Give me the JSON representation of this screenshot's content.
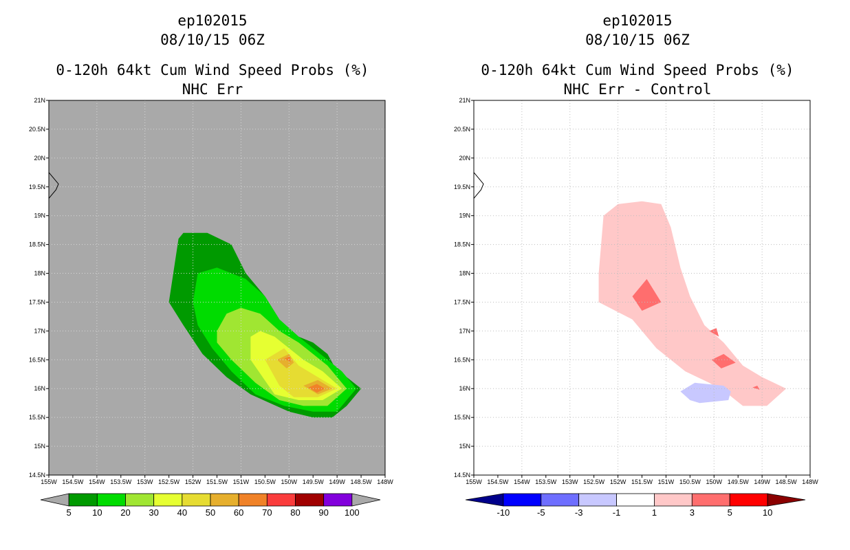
{
  "left_panel": {
    "storm": "ep102015",
    "datetime": "08/10/15 06Z",
    "product": "0-120h 64kt Cum Wind Speed Probs (%)",
    "subtitle": "NHC Err",
    "background_color": "#a9a9a9",
    "colorbar": {
      "labels": [
        "5",
        "10",
        "20",
        "30",
        "40",
        "50",
        "60",
        "70",
        "80",
        "90",
        "100"
      ],
      "colors": [
        "#a9a9a9",
        "#009a00",
        "#00dc00",
        "#a0e632",
        "#e6ff32",
        "#e6dc32",
        "#e6af2d",
        "#f08228",
        "#fa3c3c",
        "#a00000",
        "#8200dc",
        "#a9a9a9"
      ]
    }
  },
  "right_panel": {
    "storm": "ep102015",
    "datetime": "08/10/15 06Z",
    "product": "0-120h 64kt Cum Wind Speed Probs (%)",
    "subtitle": "NHC Err - Control",
    "background_color": "#ffffff",
    "colorbar": {
      "labels": [
        "-10",
        "-5",
        "-3",
        "-1",
        "1",
        "3",
        "5",
        "10"
      ],
      "colors": [
        "#00008b",
        "#0000ff",
        "#6e6eff",
        "#c8c8ff",
        "#ffffff",
        "#ffc8c8",
        "#ff6e6e",
        "#ff0000",
        "#8b0000"
      ]
    }
  },
  "axes": {
    "lon_labels": [
      "155W",
      "154.5W",
      "154W",
      "153.5W",
      "153W",
      "152.5W",
      "152W",
      "151.5W",
      "151W",
      "150.5W",
      "150W",
      "149.5W",
      "149W",
      "148.5W",
      "148W"
    ],
    "lat_labels": [
      "14.5N",
      "15N",
      "15.5N",
      "16N",
      "16.5N",
      "17N",
      "17.5N",
      "18N",
      "18.5N",
      "19N",
      "19.5N",
      "20N",
      "20.5N",
      "21N"
    ],
    "lon_range": [
      -155,
      -148
    ],
    "lat_range": [
      14.5,
      21
    ]
  },
  "contours": {
    "left": [
      {
        "level": "10-20",
        "color": "#009a00",
        "points": [
          [
            -152.5,
            17.5
          ],
          [
            -152.3,
            18.6
          ],
          [
            -152.2,
            18.7
          ],
          [
            -151.7,
            18.7
          ],
          [
            -151.2,
            18.5
          ],
          [
            -150.9,
            18
          ],
          [
            -150.5,
            17.6
          ],
          [
            -150.2,
            17.2
          ],
          [
            -149.8,
            16.9
          ],
          [
            -149.5,
            16.8
          ],
          [
            -149.2,
            16.6
          ],
          [
            -149,
            16.3
          ],
          [
            -148.8,
            16.2
          ],
          [
            -148.5,
            16
          ],
          [
            -148.8,
            15.7
          ],
          [
            -149.1,
            15.5
          ],
          [
            -149.5,
            15.5
          ],
          [
            -150,
            15.6
          ],
          [
            -150.8,
            15.9
          ],
          [
            -151.3,
            16.2
          ],
          [
            -151.8,
            16.6
          ],
          [
            -152.2,
            17.1
          ]
        ]
      },
      {
        "level": "20-30",
        "color": "#00dc00",
        "points": [
          [
            -152,
            17.5
          ],
          [
            -151.9,
            18
          ],
          [
            -151.5,
            18.1
          ],
          [
            -151.2,
            18
          ],
          [
            -150.9,
            17.9
          ],
          [
            -150.5,
            17.6
          ],
          [
            -150.2,
            17.2
          ],
          [
            -149.8,
            16.9
          ],
          [
            -149.5,
            16.7
          ],
          [
            -149.2,
            16.5
          ],
          [
            -148.9,
            16.3
          ],
          [
            -148.6,
            16
          ],
          [
            -149,
            15.6
          ],
          [
            -149.5,
            15.6
          ],
          [
            -150.1,
            15.7
          ],
          [
            -150.7,
            15.9
          ],
          [
            -151.2,
            16.3
          ],
          [
            -151.6,
            16.7
          ],
          [
            -151.9,
            17.1
          ]
        ]
      },
      {
        "level": "30-40",
        "color": "#a0e632",
        "points": [
          [
            -151.5,
            17
          ],
          [
            -151.3,
            17.3
          ],
          [
            -151,
            17.4
          ],
          [
            -150.6,
            17.3
          ],
          [
            -150.2,
            17
          ],
          [
            -149.8,
            16.8
          ],
          [
            -149.5,
            16.6
          ],
          [
            -149.2,
            16.4
          ],
          [
            -148.8,
            16
          ],
          [
            -149.2,
            15.7
          ],
          [
            -149.7,
            15.7
          ],
          [
            -150.2,
            15.8
          ],
          [
            -150.7,
            16.1
          ],
          [
            -151.2,
            16.5
          ],
          [
            -151.5,
            16.8
          ]
        ]
      },
      {
        "level": "40-50",
        "color": "#e6ff32",
        "points": [
          [
            -150.8,
            16.9
          ],
          [
            -150.6,
            17
          ],
          [
            -150.3,
            16.9
          ],
          [
            -150,
            16.7
          ],
          [
            -149.7,
            16.5
          ],
          [
            -149.3,
            16.3
          ],
          [
            -148.9,
            16
          ],
          [
            -149.3,
            15.8
          ],
          [
            -149.8,
            15.8
          ],
          [
            -150.3,
            15.9
          ],
          [
            -150.8,
            16.5
          ]
        ]
      },
      {
        "level": "50-60",
        "color": "#e6dc32",
        "points": [
          [
            -150.5,
            16.5
          ],
          [
            -150.1,
            16.7
          ],
          [
            -149.8,
            16.4
          ],
          [
            -149.4,
            16.2
          ],
          [
            -149,
            16
          ],
          [
            -149.4,
            15.85
          ],
          [
            -149.9,
            15.85
          ],
          [
            -150.2,
            16.05
          ]
        ]
      },
      {
        "level": "60-70",
        "color": "#e6af2d",
        "points": [
          [
            -150.25,
            16.5
          ],
          [
            -150,
            16.6
          ],
          [
            -149.9,
            16.45
          ],
          [
            -150.05,
            16.35
          ]
        ]
      },
      {
        "level": "60-70",
        "color": "#e6af2d",
        "points": [
          [
            -149.7,
            16.05
          ],
          [
            -149.4,
            16.15
          ],
          [
            -149.1,
            16
          ],
          [
            -149.4,
            15.9
          ]
        ]
      },
      {
        "level": "70-80",
        "color": "#f08228",
        "points": [
          [
            -150.1,
            16.52
          ],
          [
            -149.98,
            16.56
          ],
          [
            -149.97,
            16.46
          ]
        ]
      },
      {
        "level": "70-80",
        "color": "#f08228",
        "points": [
          [
            -149.6,
            16.02
          ],
          [
            -149.42,
            16.08
          ],
          [
            -149.25,
            16
          ],
          [
            -149.42,
            15.93
          ]
        ]
      }
    ],
    "right": [
      {
        "level": "1-3",
        "color": "#ffc8c8",
        "points": [
          [
            -152.3,
            19
          ],
          [
            -152,
            19.2
          ],
          [
            -151.5,
            19.25
          ],
          [
            -151.1,
            19.2
          ],
          [
            -150.9,
            18.8
          ],
          [
            -150.7,
            18.1
          ],
          [
            -150.5,
            17.6
          ],
          [
            -150.2,
            17.1
          ],
          [
            -149.8,
            16.8
          ],
          [
            -149.4,
            16.4
          ],
          [
            -149,
            16.2
          ],
          [
            -148.5,
            16
          ],
          [
            -148.9,
            15.7
          ],
          [
            -149.4,
            15.7
          ],
          [
            -149.7,
            15.9
          ],
          [
            -150.1,
            16.1
          ],
          [
            -150.6,
            16.3
          ],
          [
            -151.2,
            16.7
          ],
          [
            -151.7,
            17.2
          ],
          [
            -152.4,
            17.5
          ],
          [
            -152.4,
            18
          ]
        ]
      },
      {
        "level": "3-5",
        "color": "#ff6e6e",
        "points": [
          [
            -151.7,
            17.6
          ],
          [
            -151.4,
            17.9
          ],
          [
            -151.1,
            17.5
          ],
          [
            -151.5,
            17.35
          ]
        ]
      },
      {
        "level": "3-5",
        "color": "#ff6e6e",
        "points": [
          [
            -150.1,
            17
          ],
          [
            -149.95,
            17.05
          ],
          [
            -149.9,
            16.9
          ]
        ]
      },
      {
        "level": "3-5",
        "color": "#ff6e6e",
        "points": [
          [
            -150.05,
            16.5
          ],
          [
            -149.8,
            16.6
          ],
          [
            -149.55,
            16.45
          ],
          [
            -149.85,
            16.35
          ]
        ]
      },
      {
        "level": "3-5",
        "color": "#ff6e6e",
        "points": [
          [
            -149.2,
            16.02
          ],
          [
            -149.1,
            16.05
          ],
          [
            -149.05,
            15.98
          ]
        ]
      },
      {
        "level": "-3 to -1",
        "color": "#c8c8ff",
        "points": [
          [
            -150.7,
            15.95
          ],
          [
            -150.4,
            16.1
          ],
          [
            -149.8,
            16.05
          ],
          [
            -149.65,
            15.95
          ],
          [
            -149.7,
            15.8
          ],
          [
            -150.3,
            15.75
          ],
          [
            -150.5,
            15.8
          ]
        ]
      }
    ]
  },
  "coastline": [
    [
      -155,
      19.75
    ],
    [
      -154.9,
      19.65
    ],
    [
      -154.8,
      19.55
    ],
    [
      -154.85,
      19.45
    ],
    [
      -154.95,
      19.35
    ],
    [
      -155,
      19.3
    ]
  ]
}
